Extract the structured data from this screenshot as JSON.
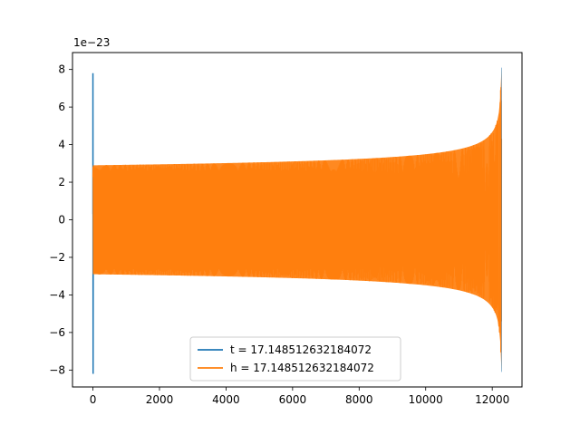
{
  "chart_data": {
    "type": "line",
    "title": "",
    "xlabel": "",
    "ylabel": "",
    "y_scale_note": "1e−23",
    "xlim": [
      -614,
      12894
    ],
    "ylim": [
      -8.9,
      8.9
    ],
    "x_ticks": [
      0,
      2000,
      4000,
      6000,
      8000,
      10000,
      12000
    ],
    "x_tick_labels": [
      "0",
      "2000",
      "4000",
      "6000",
      "8000",
      "10000",
      "12000"
    ],
    "y_ticks": [
      -8,
      -6,
      -4,
      -2,
      0,
      2,
      4,
      6,
      8
    ],
    "y_tick_labels": [
      "−8",
      "−6",
      "−4",
      "−2",
      "0",
      "2",
      "4",
      "6",
      "8"
    ],
    "grid": false,
    "legend_position": "lower-center",
    "series": [
      {
        "name": "t = 17.148512632184072",
        "color": "#1f77b4",
        "description_points": {
          "spike_x": 0,
          "spike_min": -8.2,
          "spike_max": 7.8,
          "start_amplitude": 2.9,
          "end_x": 12280,
          "end_amplitude": 8.1
        }
      },
      {
        "name": "h = 17.148512632184072",
        "color": "#ff7f0e",
        "description_points": {
          "start_x": 0,
          "start_amplitude": 2.9,
          "amplitude_at_6000": 3.4,
          "amplitude_at_10000": 4.6,
          "amplitude_at_12000": 6.5,
          "end_x": 12280,
          "end_amplitude": 8.1
        }
      }
    ]
  }
}
